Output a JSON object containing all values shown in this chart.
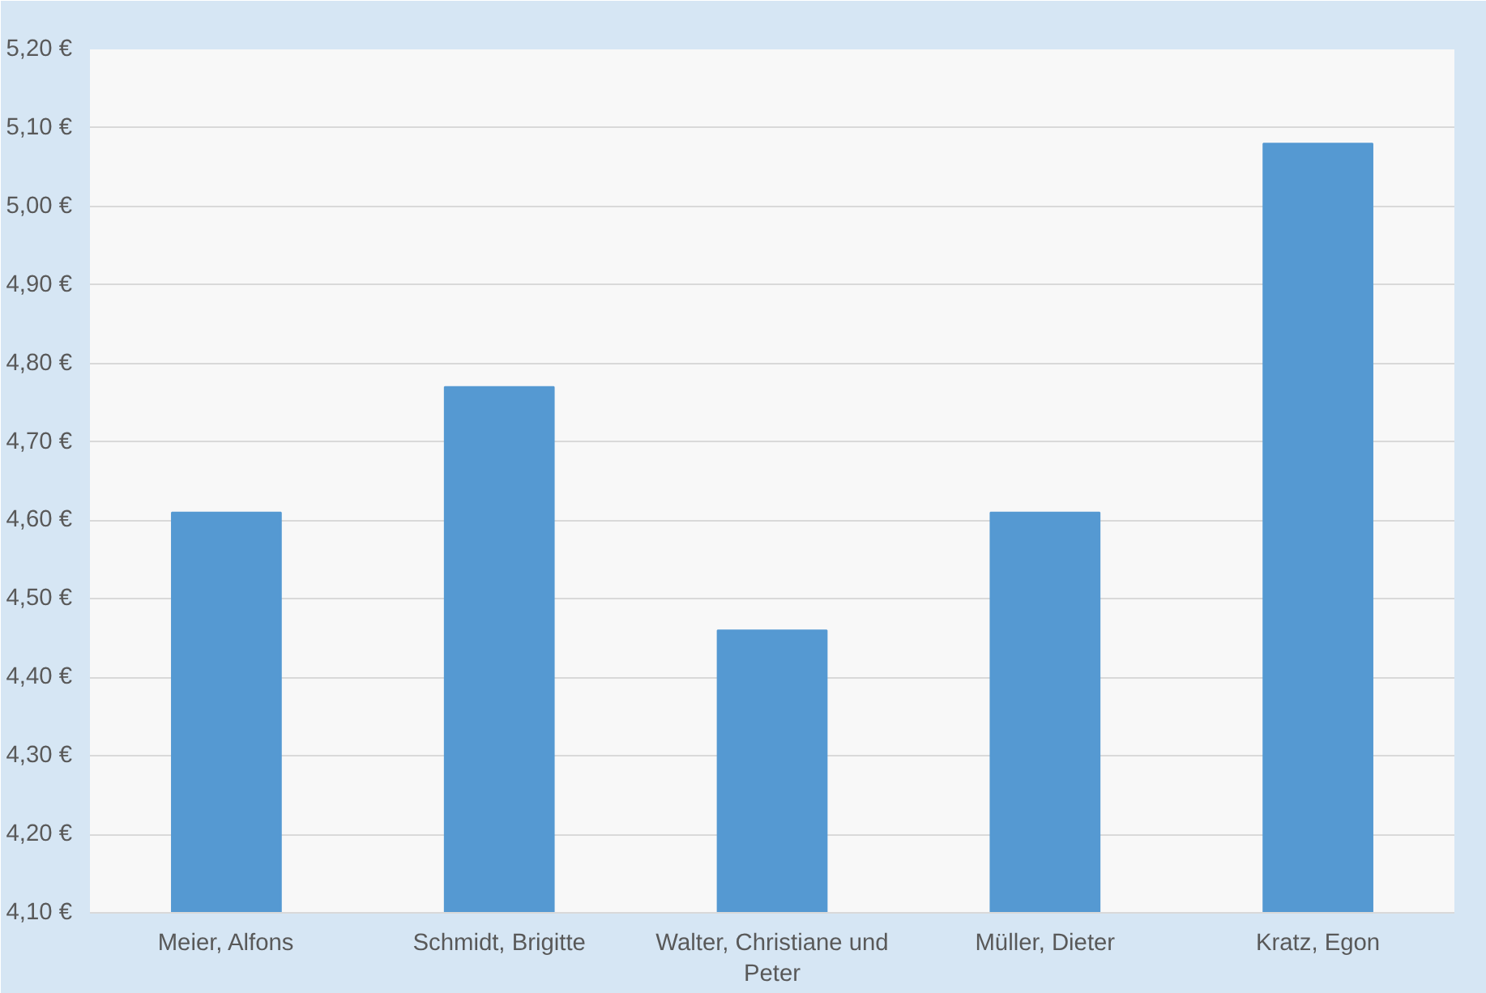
{
  "chart_data": {
    "type": "bar",
    "categories": [
      "Meier, Alfons",
      "Schmidt, Brigitte",
      "Walter, Christiane und Peter",
      "Müller, Dieter",
      "Kratz, Egon"
    ],
    "values": [
      4.61,
      4.77,
      4.46,
      4.61,
      5.08
    ],
    "color": "#5599d2",
    "ylim": [
      4.1,
      5.2
    ],
    "yticks": [
      {
        "value": 4.1,
        "label": "4,10 €"
      },
      {
        "value": 4.2,
        "label": "4,20 €"
      },
      {
        "value": 4.3,
        "label": "4,30 €"
      },
      {
        "value": 4.4,
        "label": "4,40 €"
      },
      {
        "value": 4.5,
        "label": "4,50 €"
      },
      {
        "value": 4.6,
        "label": "4,60 €"
      },
      {
        "value": 4.7,
        "label": "4,70 €"
      },
      {
        "value": 4.8,
        "label": "4,80 €"
      },
      {
        "value": 4.9,
        "label": "4,90 €"
      },
      {
        "value": 5.0,
        "label": "5,00 €"
      },
      {
        "value": 5.1,
        "label": "5,10 €"
      },
      {
        "value": 5.2,
        "label": "5,20 €"
      }
    ],
    "grid": "y"
  }
}
